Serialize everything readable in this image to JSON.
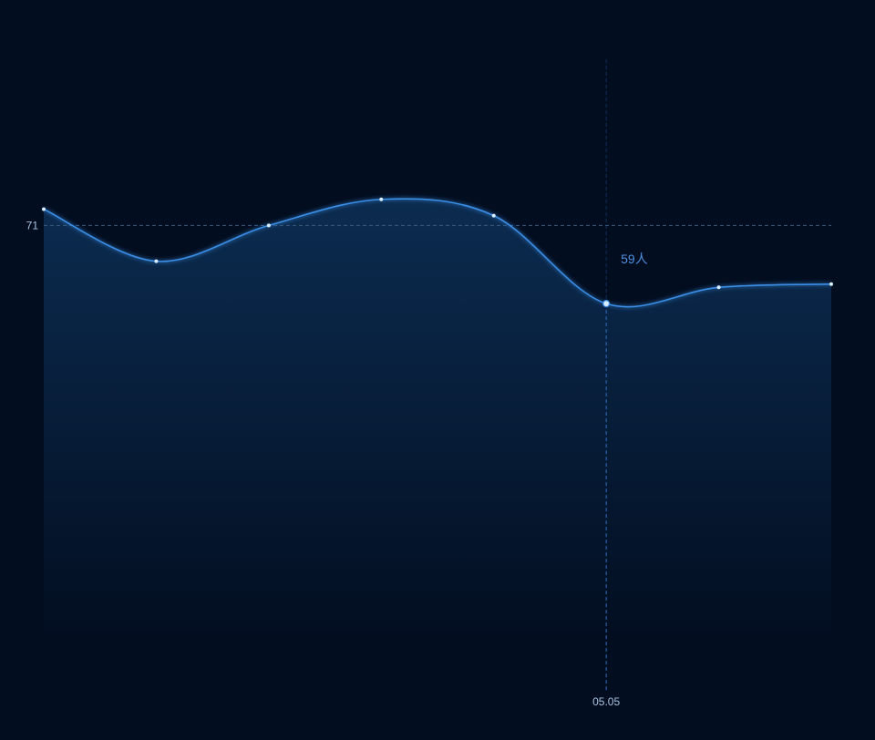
{
  "chart_data": {
    "type": "area",
    "title": "",
    "xlabel": "",
    "ylabel": "",
    "x": [
      "",
      "",
      "",
      "",
      "",
      "05.05",
      "",
      ""
    ],
    "series": [
      {
        "values": [
          73.5,
          65.5,
          71,
          75,
          72.5,
          59,
          61.5,
          62
        ]
      }
    ],
    "ylim": [
      0,
      100
    ],
    "mark_line": {
      "value": 71,
      "label": "71"
    },
    "tooltip": {
      "index": 5,
      "x_label": "05.05",
      "value": 59,
      "unit": "人",
      "text": "59人"
    },
    "grid": false,
    "legend": "none",
    "colors": {
      "background": "#020d1f",
      "line": "#3a8ee6",
      "point": "#d8ecff",
      "area_top": "#0c2d52",
      "area_bottom": "#020d1f",
      "mark_line": "#3b5a7e",
      "axis_pointer": "#2f6fc0",
      "tooltip_text": "#4d8fe0",
      "axis_text": "#a9c3e0"
    }
  }
}
